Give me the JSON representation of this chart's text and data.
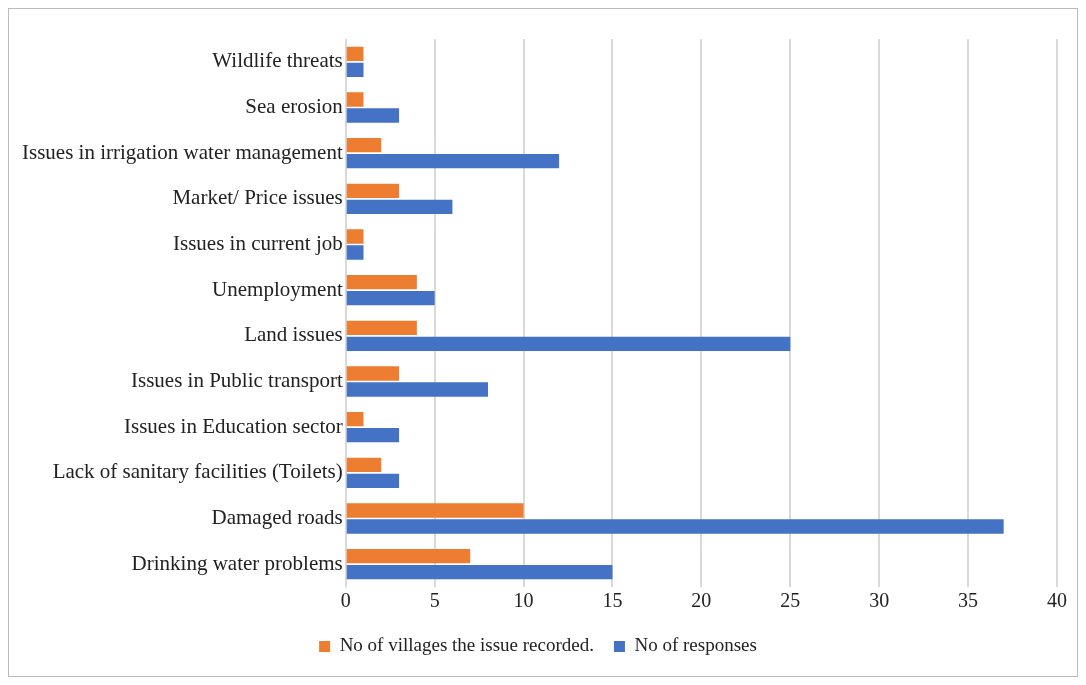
{
  "chart_data": {
    "type": "bar",
    "orientation": "horizontal",
    "categories": [
      "Wildlife threats",
      "Sea erosion",
      "Issues in irrigation water management",
      "Market/ Price issues",
      "Issues in current job",
      "Unemployment",
      "Land issues",
      "Issues in Public transport",
      "Issues in Education sector",
      "Lack of sanitary facilities (Toilets)",
      "Damaged roads",
      "Drinking water problems"
    ],
    "series": [
      {
        "name": "No of villages the issue recorded.",
        "color": "#ed7d31",
        "values": [
          1,
          1,
          2,
          3,
          1,
          4,
          4,
          3,
          1,
          2,
          10,
          7
        ]
      },
      {
        "name": "No of responses",
        "color": "#4472c4",
        "values": [
          1,
          3,
          12,
          6,
          1,
          5,
          25,
          8,
          3,
          3,
          37,
          15
        ]
      }
    ],
    "xlim": [
      0,
      40
    ],
    "xticks": [
      0,
      5,
      10,
      15,
      20,
      25,
      30,
      35,
      40
    ],
    "grid": "x",
    "legend": "bottom"
  }
}
